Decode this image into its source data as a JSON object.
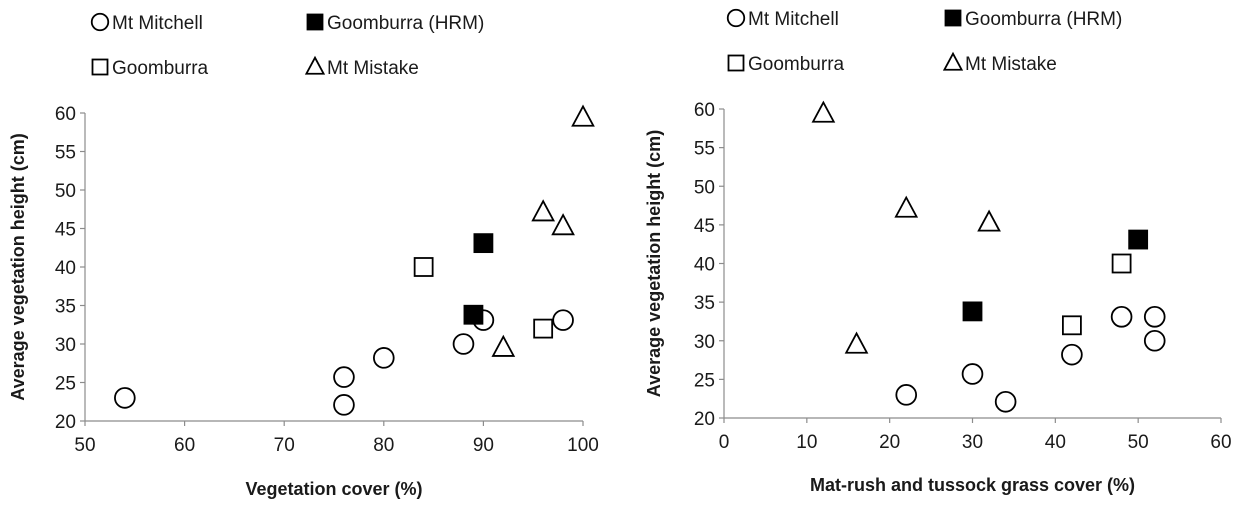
{
  "chart_data": [
    {
      "type": "scatter",
      "title": "",
      "xlabel": "Vegetation cover (%)",
      "ylabel": "Average vegetation height (cm)",
      "xlim": [
        50,
        100
      ],
      "ylim": [
        20,
        60
      ],
      "xticks": [
        50,
        60,
        70,
        80,
        90,
        100
      ],
      "yticks": [
        20,
        25,
        30,
        35,
        40,
        45,
        50,
        55,
        60
      ],
      "grid": false,
      "legend": "top",
      "series": [
        {
          "name": "Mt Mitchell",
          "marker": "circle",
          "points": [
            [
              54,
              23
            ],
            [
              76,
              25.7
            ],
            [
              76,
              22.1
            ],
            [
              80,
              28.2
            ],
            [
              88,
              30
            ],
            [
              90,
              33.1
            ],
            [
              98,
              33.1
            ]
          ]
        },
        {
          "name": "Goomburra (HRM)",
          "marker": "filled-square",
          "points": [
            [
              89,
              33.8
            ],
            [
              90,
              43.1
            ]
          ]
        },
        {
          "name": "Goomburra",
          "marker": "open-square",
          "points": [
            [
              84,
              40
            ],
            [
              96,
              32
            ]
          ]
        },
        {
          "name": "Mt Mistake",
          "marker": "triangle",
          "points": [
            [
              92,
              29.5
            ],
            [
              96,
              47.1
            ],
            [
              98,
              45.3
            ],
            [
              100,
              59.4
            ]
          ]
        }
      ]
    },
    {
      "type": "scatter",
      "title": "",
      "xlabel": "Mat-rush and tussock grass cover (%)",
      "ylabel": "Average vegetation height (cm)",
      "xlim": [
        0,
        60
      ],
      "ylim": [
        20,
        60
      ],
      "xticks": [
        0,
        10,
        20,
        30,
        40,
        50,
        60
      ],
      "yticks": [
        20,
        25,
        30,
        35,
        40,
        45,
        50,
        55,
        60
      ],
      "grid": false,
      "legend": "top",
      "series": [
        {
          "name": "Mt Mitchell",
          "marker": "circle",
          "points": [
            [
              22,
              23
            ],
            [
              30,
              25.7
            ],
            [
              34,
              22.1
            ],
            [
              42,
              28.2
            ],
            [
              48,
              33.1
            ],
            [
              52,
              33.1
            ],
            [
              52,
              30
            ]
          ]
        },
        {
          "name": "Goomburra (HRM)",
          "marker": "filled-square",
          "points": [
            [
              30,
              33.8
            ],
            [
              50,
              43.1
            ]
          ]
        },
        {
          "name": "Goomburra",
          "marker": "open-square",
          "points": [
            [
              42,
              32
            ],
            [
              48,
              40
            ]
          ]
        },
        {
          "name": "Mt Mistake",
          "marker": "triangle",
          "points": [
            [
              12,
              59.4
            ],
            [
              16,
              29.5
            ],
            [
              22,
              47.1
            ],
            [
              32,
              45.3
            ]
          ]
        }
      ]
    }
  ]
}
